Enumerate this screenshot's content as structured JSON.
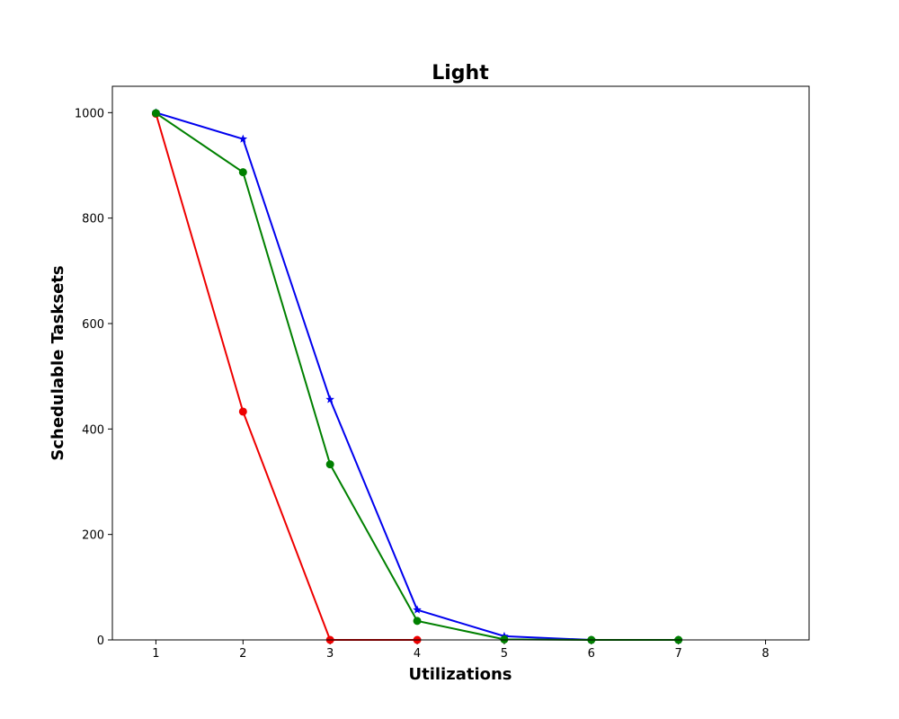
{
  "chart_data": {
    "type": "line",
    "title": "Light",
    "xlabel": "Utilizations",
    "ylabel": "Schedulable Tasksets",
    "xlim": [
      0.5,
      8.5
    ],
    "ylim": [
      0,
      1050
    ],
    "xticks": [
      1,
      2,
      3,
      4,
      5,
      6,
      7,
      8
    ],
    "yticks": [
      0,
      200,
      400,
      600,
      800,
      1000
    ],
    "grid": false,
    "series": [
      {
        "color": "#ee0000",
        "marker": "circle",
        "x": [
          1,
          2,
          3,
          4
        ],
        "y": [
          998,
          433,
          0,
          0
        ]
      },
      {
        "color": "#0000ee",
        "marker": "star",
        "x": [
          1,
          2,
          3,
          4,
          5,
          6,
          7
        ],
        "y": [
          1000,
          950,
          456,
          57,
          7,
          0,
          0
        ]
      },
      {
        "color": "#008000",
        "marker": "circle",
        "x": [
          1,
          2,
          3,
          4,
          5,
          6,
          7
        ],
        "y": [
          999,
          887,
          333,
          36,
          1,
          0,
          0
        ]
      }
    ]
  }
}
